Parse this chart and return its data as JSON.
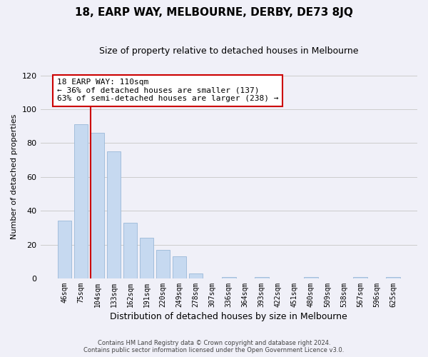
{
  "title": "18, EARP WAY, MELBOURNE, DERBY, DE73 8JQ",
  "subtitle": "Size of property relative to detached houses in Melbourne",
  "xlabel": "Distribution of detached houses by size in Melbourne",
  "ylabel": "Number of detached properties",
  "bar_labels": [
    "46sqm",
    "75sqm",
    "104sqm",
    "133sqm",
    "162sqm",
    "191sqm",
    "220sqm",
    "249sqm",
    "278sqm",
    "307sqm",
    "336sqm",
    "364sqm",
    "393sqm",
    "422sqm",
    "451sqm",
    "480sqm",
    "509sqm",
    "538sqm",
    "567sqm",
    "596sqm",
    "625sqm"
  ],
  "bar_values": [
    34,
    91,
    86,
    75,
    33,
    24,
    17,
    13,
    3,
    0,
    1,
    0,
    1,
    0,
    0,
    1,
    0,
    0,
    1,
    0,
    1
  ],
  "bar_color": "#c6d9f0",
  "bar_edge_color": "#9ab8d8",
  "vline_color": "#cc0000",
  "vline_index": 2,
  "annotation_title": "18 EARP WAY: 110sqm",
  "annotation_line1": "← 36% of detached houses are smaller (137)",
  "annotation_line2": "63% of semi-detached houses are larger (238) →",
  "annotation_box_facecolor": "#ffffff",
  "annotation_box_edgecolor": "#cc0000",
  "ylim": [
    0,
    120
  ],
  "yticks": [
    0,
    20,
    40,
    60,
    80,
    100,
    120
  ],
  "grid_color": "#cccccc",
  "footer_line1": "Contains HM Land Registry data © Crown copyright and database right 2024.",
  "footer_line2": "Contains public sector information licensed under the Open Government Licence v3.0.",
  "bg_color": "#f0f0f8",
  "title_fontsize": 11,
  "subtitle_fontsize": 9,
  "tick_fontsize": 7,
  "ylabel_fontsize": 8,
  "xlabel_fontsize": 9,
  "footer_fontsize": 6
}
